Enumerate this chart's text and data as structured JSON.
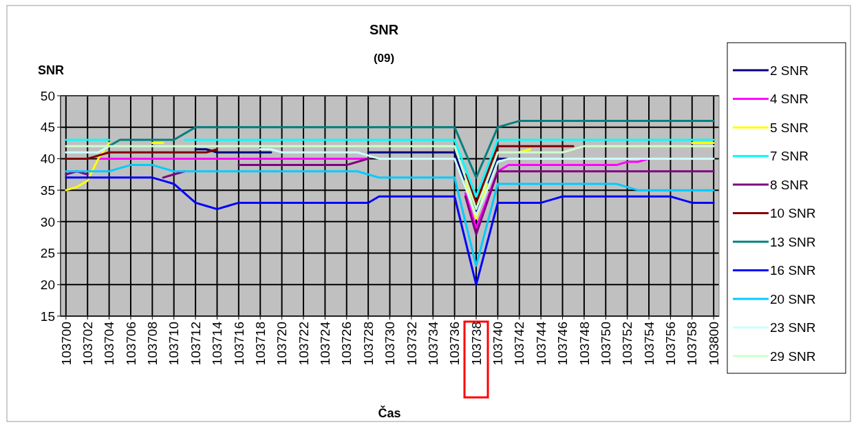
{
  "chart_data": {
    "type": "line",
    "title": "SNR",
    "subtitle": "(09)",
    "xlabel": "Čas",
    "ylabel": "SNR",
    "categories": [
      "103700",
      null,
      "103702",
      null,
      "103704",
      null,
      "103706",
      null,
      "103708",
      null,
      "103710",
      null,
      "103712",
      null,
      "103714",
      null,
      "103716",
      null,
      "103718",
      null,
      "103720",
      null,
      "103722",
      null,
      "103724",
      null,
      "103726",
      null,
      "103728",
      null,
      "103730",
      null,
      "103732",
      null,
      "103734",
      null,
      "103736",
      null,
      "103738",
      null,
      "103740",
      null,
      "103742",
      null,
      "103744",
      null,
      "103746",
      null,
      "103748",
      null,
      "103750",
      null,
      "103752",
      null,
      "103754",
      null,
      "103756",
      null,
      "103758",
      null,
      "103800"
    ],
    "ylim": [
      15,
      50
    ],
    "yticks": [
      15,
      20,
      25,
      30,
      35,
      40,
      45,
      50
    ],
    "grid": true,
    "legend": "right",
    "marker": "none",
    "line_style": "solid",
    "series": [
      {
        "name": "2 SNR",
        "color": "#000080",
        "values": [
          null,
          null,
          null,
          null,
          null,
          null,
          null,
          null,
          null,
          null,
          null,
          null,
          41.5,
          41.5,
          41,
          41,
          41,
          41,
          41,
          41,
          null,
          null,
          null,
          null,
          null,
          null,
          null,
          null,
          41,
          41,
          41,
          41,
          41,
          41,
          41,
          41,
          41,
          36,
          31.5,
          35.5,
          40,
          40,
          40,
          null,
          null,
          null,
          null,
          null,
          null,
          null,
          null,
          null,
          null,
          null,
          null,
          null,
          null,
          null,
          null,
          null,
          null
        ]
      },
      {
        "name": "4 SNR",
        "color": "#ff00ff",
        "values": [
          null,
          null,
          null,
          40,
          40,
          40,
          40,
          40,
          40,
          40,
          40,
          40,
          40,
          40,
          40,
          40,
          40,
          40,
          40,
          40,
          40,
          40,
          40,
          40,
          40,
          40,
          40,
          40,
          40,
          null,
          null,
          null,
          null,
          null,
          null,
          null,
          null,
          34.5,
          29,
          33.5,
          38,
          39,
          39,
          39,
          39,
          39,
          39,
          39,
          39,
          39,
          39,
          39,
          39.5,
          39.5,
          40,
          null,
          null,
          null,
          null,
          null,
          null
        ]
      },
      {
        "name": "5 SNR",
        "color": "#ffff00",
        "values": [
          35,
          35.5,
          36.5,
          40,
          42.5,
          null,
          null,
          null,
          42.5,
          42.5,
          null,
          null,
          null,
          null,
          null,
          null,
          null,
          null,
          null,
          null,
          null,
          null,
          null,
          null,
          null,
          null,
          null,
          null,
          null,
          null,
          null,
          null,
          null,
          null,
          null,
          null,
          null,
          36.5,
          30.5,
          36,
          null,
          null,
          41,
          41.5,
          null,
          null,
          null,
          null,
          null,
          null,
          null,
          null,
          null,
          null,
          null,
          null,
          null,
          null,
          42.5,
          42.5,
          42.5
        ]
      },
      {
        "name": "7 SNR",
        "color": "#00ffff",
        "values": [
          43,
          43,
          43,
          43,
          43,
          null,
          null,
          null,
          null,
          null,
          null,
          43,
          43,
          43,
          43,
          43,
          43,
          43,
          43,
          43,
          43,
          43,
          43,
          43,
          43,
          43,
          43,
          43,
          43,
          43,
          43,
          43,
          43,
          43,
          43,
          43,
          43,
          38.5,
          34,
          38.5,
          43,
          43,
          43,
          43,
          43,
          43,
          43,
          43,
          43,
          43,
          43,
          43,
          43,
          43,
          43,
          43,
          43,
          43,
          43,
          43,
          43
        ]
      },
      {
        "name": "8 SNR",
        "color": "#800080",
        "values": [
          37.5,
          38,
          37.5,
          null,
          null,
          null,
          null,
          null,
          null,
          37,
          37.5,
          38,
          null,
          null,
          null,
          null,
          39,
          39,
          39,
          39,
          39,
          39,
          39,
          39,
          39,
          39,
          39,
          39.5,
          40,
          null,
          null,
          null,
          null,
          null,
          null,
          null,
          null,
          34,
          28,
          33,
          38,
          38,
          38,
          38,
          38,
          38,
          38,
          38,
          38,
          38,
          38,
          38,
          38,
          38,
          38,
          38,
          38,
          38,
          38,
          38,
          38
        ]
      },
      {
        "name": "10 SNR",
        "color": "#800000",
        "values": [
          40,
          40,
          40,
          40.5,
          41,
          41,
          41,
          41,
          41,
          41,
          41,
          41,
          41,
          41,
          41.5,
          null,
          null,
          null,
          null,
          null,
          null,
          null,
          null,
          null,
          null,
          null,
          null,
          null,
          null,
          null,
          null,
          null,
          null,
          null,
          null,
          null,
          null,
          37.5,
          33,
          37.5,
          42,
          42,
          42,
          42,
          42,
          42,
          42,
          42,
          null,
          null,
          null,
          null,
          null,
          null,
          null,
          null,
          null,
          null,
          null,
          null,
          null
        ]
      },
      {
        "name": "13 SNR",
        "color": "#008080",
        "values": [
          null,
          null,
          null,
          null,
          42,
          43,
          43,
          43,
          43,
          43,
          43,
          44,
          45,
          45,
          45,
          45,
          45,
          45,
          45,
          45,
          45,
          45,
          45,
          45,
          45,
          45,
          45,
          45,
          45,
          45,
          45,
          45,
          45,
          45,
          45,
          45,
          45,
          41,
          37,
          41,
          45,
          45.5,
          46,
          46,
          46,
          46,
          46,
          46,
          46,
          46,
          46,
          46,
          46,
          46,
          46,
          46,
          46,
          46,
          46,
          46,
          46
        ]
      },
      {
        "name": "16 SNR",
        "color": "#0000ff",
        "values": [
          37,
          37,
          37,
          37,
          37,
          37,
          37,
          37,
          37,
          36.5,
          36,
          34.5,
          33,
          32.5,
          32,
          32.5,
          33,
          33,
          33,
          33,
          33,
          33,
          33,
          33,
          33,
          33,
          33,
          33,
          33,
          34,
          34,
          34,
          34,
          34,
          34,
          34,
          34,
          27,
          20,
          26.5,
          33,
          33,
          33,
          33,
          33,
          33.5,
          34,
          34,
          34,
          34,
          34,
          34,
          34,
          34,
          34,
          34,
          34,
          33.5,
          33,
          33,
          33
        ]
      },
      {
        "name": "20 SNR",
        "color": "#00ccff",
        "values": [
          38,
          38,
          38,
          38,
          38,
          38.5,
          39,
          39,
          39,
          38.5,
          38,
          38,
          38,
          38,
          38,
          38,
          38,
          38,
          38,
          38,
          38,
          38,
          38,
          38,
          38,
          38,
          38,
          38,
          37.5,
          37,
          37,
          37,
          37,
          37,
          37,
          37,
          37,
          30,
          23,
          29.5,
          36,
          36,
          36,
          36,
          36,
          36,
          36,
          36,
          36,
          36,
          36,
          36,
          35.5,
          35,
          35,
          35,
          35,
          35,
          35,
          35,
          35
        ]
      },
      {
        "name": "23 SNR",
        "color": "#ccffff",
        "values": [
          41,
          41,
          41,
          41,
          42,
          null,
          null,
          null,
          null,
          null,
          null,
          null,
          null,
          null,
          null,
          null,
          null,
          null,
          41.5,
          41.5,
          41,
          41,
          41,
          41,
          41,
          41,
          41,
          41,
          40.5,
          40,
          40,
          40,
          40,
          40,
          40,
          40,
          40,
          35.5,
          31,
          35,
          39.5,
          40,
          40,
          40,
          40,
          40,
          40,
          40,
          40,
          40,
          40,
          40,
          40,
          40,
          40,
          40,
          40,
          40,
          40,
          40,
          40
        ]
      },
      {
        "name": "29 SNR",
        "color": "#ccffcc",
        "values": [
          42,
          42,
          42,
          42,
          42,
          42,
          42,
          42,
          42,
          42,
          42,
          42,
          42,
          42,
          42,
          42,
          42,
          42,
          42,
          42,
          42,
          42,
          42,
          42,
          42,
          42,
          42,
          42,
          42,
          42,
          42,
          42,
          42,
          42,
          42,
          42,
          42,
          37,
          32,
          36.5,
          41,
          41,
          41,
          41,
          41,
          41,
          41,
          41.5,
          42,
          42,
          42,
          42,
          42,
          42,
          42,
          42,
          42,
          42,
          42,
          42,
          42
        ]
      }
    ]
  }
}
